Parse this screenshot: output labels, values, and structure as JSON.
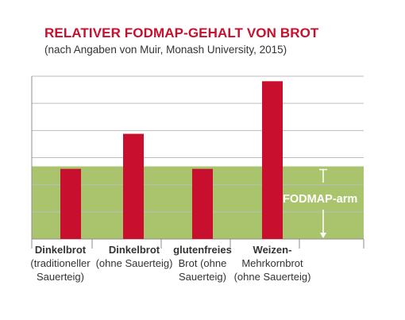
{
  "chart_data": {
    "type": "bar",
    "title": "RELATIVER FODMAP-GEHALT VON BROT",
    "subtitle": "(nach Angaben von Muir, Monash University, 2015)",
    "categories": [
      {
        "line1": "Dinkelbrot",
        "line2": "(traditioneller Sauerteig)"
      },
      {
        "line1": "Dinkelbrot",
        "line2": "(ohne Sauerteig)"
      },
      {
        "line1": "glutenfreies",
        "line2": "Brot (ohne Sauerteig)"
      },
      {
        "line1": "Weizen-",
        "line2": "Mehrkornbrot (ohne Sauerteig)"
      }
    ],
    "values": [
      2.8,
      4.2,
      2.8,
      6.3
    ],
    "ylim": [
      0,
      6.5
    ],
    "grid": true,
    "threshold": {
      "value": 2.9,
      "label": "FODMAP-arm"
    },
    "colors": {
      "bar": "#c8102e",
      "band": "#a9c46c",
      "grid": "#bdbdbd",
      "axis": "#8c8c8c"
    }
  }
}
